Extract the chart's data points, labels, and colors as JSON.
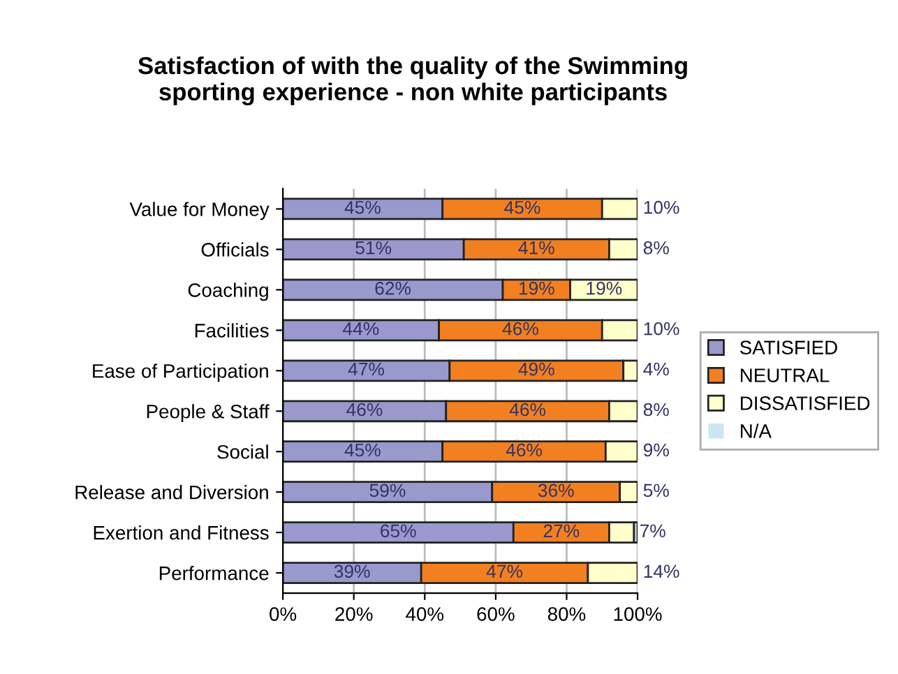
{
  "chart_data": {
    "type": "bar",
    "orientation": "horizontal",
    "stacked": true,
    "title": "Satisfaction of with the quality of the Swimming\nsporting experience - non white participants",
    "categories": [
      "Value for Money",
      "Officials",
      "Coaching",
      "Facilities",
      "Ease of Participation",
      "People & Staff",
      "Social",
      "Release and Diversion",
      "Exertion and Fitness",
      "Performance"
    ],
    "series": [
      {
        "name": "SATISFIED",
        "color": "#9999cc",
        "values": [
          45,
          51,
          62,
          44,
          47,
          46,
          45,
          59,
          65,
          39
        ],
        "value_labels": [
          "45%",
          "51%",
          "62%",
          "44%",
          "47%",
          "46%",
          "45%",
          "59%",
          "65%",
          "39%"
        ]
      },
      {
        "name": "NEUTRAL",
        "color": "#f28020",
        "values": [
          45,
          41,
          19,
          46,
          49,
          46,
          46,
          36,
          27,
          47
        ],
        "value_labels": [
          "45%",
          "41%",
          "19%",
          "46%",
          "49%",
          "46%",
          "46%",
          "36%",
          "27%",
          "47%"
        ]
      },
      {
        "name": "DISSATISFIED",
        "color": "#ffffcc",
        "values": [
          10,
          8,
          19,
          10,
          4,
          8,
          9,
          5,
          7,
          14
        ],
        "value_labels": [
          "10%",
          "8%",
          "19%",
          "10%",
          "4%",
          "8%",
          "9%",
          "5%",
          "7%",
          "14%"
        ]
      },
      {
        "name": "N/A",
        "color": "#cce6f0",
        "values": [
          0,
          0,
          0,
          0,
          0,
          0,
          0,
          0,
          1,
          0
        ]
      }
    ],
    "xlim": [
      0,
      100
    ],
    "xticks": [
      {
        "value": 0,
        "label": "0%"
      },
      {
        "value": 20,
        "label": "20%"
      },
      {
        "value": 40,
        "label": "40%"
      },
      {
        "value": 60,
        "label": "60%"
      },
      {
        "value": 80,
        "label": "80%"
      },
      {
        "value": 100,
        "label": "100%"
      }
    ],
    "grid": "x",
    "legend": "right"
  }
}
